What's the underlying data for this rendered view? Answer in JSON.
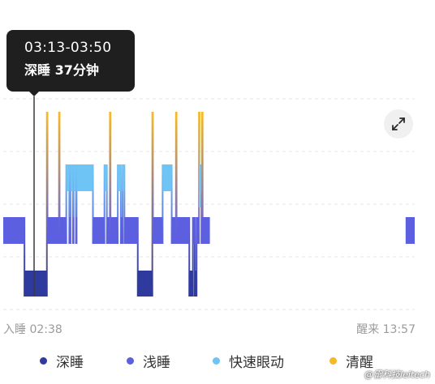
{
  "tooltip": {
    "time_range": "03:13-03:50",
    "detail": "深睡 37分钟"
  },
  "timeline": {
    "start_label": "入睡 02:38",
    "end_label": "醒来 13:57"
  },
  "expand_icon": "expand-arrows-icon",
  "legend": [
    {
      "label": "深睡",
      "color": "#2f3a9e"
    },
    {
      "label": "浅睡",
      "color": "#5b5fe0"
    },
    {
      "label": "快速眼动",
      "color": "#6ec4f4"
    },
    {
      "label": "清醒",
      "color": "#f5b828"
    }
  ],
  "watermark": "@雷科技leitech",
  "chart_data": {
    "type": "hypnogram",
    "stages": [
      "清醒",
      "快速眼动",
      "浅睡",
      "深睡"
    ],
    "stage_colors": {
      "清醒": "#f5b828",
      "快速眼动": "#6ec4f4",
      "浅睡": "#5b5fe0",
      "深睡": "#2f3a9e"
    },
    "start_time": "02:38",
    "end_time": "13:57",
    "selected_segment": {
      "stage": "深睡",
      "start": "03:13",
      "end": "03:50",
      "minutes": 37
    },
    "segments": [
      {
        "stage": "浅睡",
        "start": "02:38",
        "end": "03:13"
      },
      {
        "stage": "深睡",
        "start": "03:13",
        "end": "03:50"
      },
      {
        "stage": "清醒",
        "start": "03:50",
        "end": "03:51"
      },
      {
        "stage": "浅睡",
        "start": "03:51",
        "end": "04:10"
      },
      {
        "stage": "清醒",
        "start": "04:10",
        "end": "04:11"
      },
      {
        "stage": "浅睡",
        "start": "04:11",
        "end": "04:22"
      },
      {
        "stage": "快速眼动",
        "start": "04:22",
        "end": "04:27"
      },
      {
        "stage": "浅睡",
        "start": "04:27",
        "end": "04:29"
      },
      {
        "stage": "快速眼动",
        "start": "04:29",
        "end": "04:33"
      },
      {
        "stage": "浅睡",
        "start": "04:33",
        "end": "04:34"
      },
      {
        "stage": "快速眼动",
        "start": "04:34",
        "end": "04:38"
      },
      {
        "stage": "浅睡",
        "start": "04:38",
        "end": "04:39"
      },
      {
        "stage": "快速眼动",
        "start": "04:39",
        "end": "05:06"
      },
      {
        "stage": "浅睡",
        "start": "05:06",
        "end": "05:25"
      },
      {
        "stage": "快速眼动",
        "start": "05:25",
        "end": "05:29"
      },
      {
        "stage": "浅睡",
        "start": "05:29",
        "end": "05:34"
      },
      {
        "stage": "清醒",
        "start": "05:34",
        "end": "05:35"
      },
      {
        "stage": "浅睡",
        "start": "05:35",
        "end": "05:47"
      },
      {
        "stage": "快速眼动",
        "start": "05:47",
        "end": "05:52"
      },
      {
        "stage": "浅睡",
        "start": "05:52",
        "end": "05:55"
      },
      {
        "stage": "快速眼动",
        "start": "05:55",
        "end": "05:58"
      },
      {
        "stage": "浅睡",
        "start": "05:58",
        "end": "06:20"
      },
      {
        "stage": "深睡",
        "start": "06:20",
        "end": "06:44"
      },
      {
        "stage": "清醒",
        "start": "06:44",
        "end": "06:45"
      },
      {
        "stage": "浅睡",
        "start": "06:45",
        "end": "07:01"
      },
      {
        "stage": "快速眼动",
        "start": "07:01",
        "end": "07:16"
      },
      {
        "stage": "浅睡",
        "start": "07:16",
        "end": "07:23"
      },
      {
        "stage": "清醒",
        "start": "07:23",
        "end": "07:24"
      },
      {
        "stage": "浅睡",
        "start": "07:24",
        "end": "07:45"
      },
      {
        "stage": "深睡",
        "start": "07:45",
        "end": "07:51"
      },
      {
        "stage": "浅睡",
        "start": "07:51",
        "end": "07:54"
      },
      {
        "stage": "深睡",
        "start": "07:54",
        "end": "07:57"
      },
      {
        "stage": "浅睡",
        "start": "07:57",
        "end": "08:01"
      },
      {
        "stage": "清醒",
        "start": "08:01",
        "end": "08:02"
      },
      {
        "stage": "快速眼动",
        "start": "08:02",
        "end": "08:05"
      },
      {
        "stage": "浅睡",
        "start": "08:05",
        "end": "08:06"
      },
      {
        "stage": "清醒",
        "start": "08:06",
        "end": "08:07"
      },
      {
        "stage": "浅睡",
        "start": "08:07",
        "end": "08:19"
      },
      {
        "stage": "浅睡",
        "start": "13:42",
        "end": "13:57"
      }
    ]
  }
}
